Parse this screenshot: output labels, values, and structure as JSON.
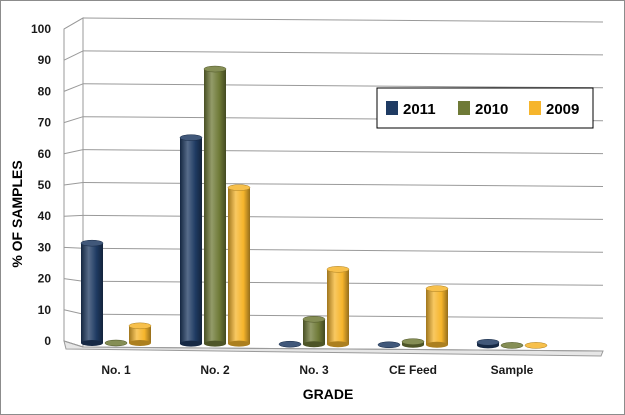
{
  "chart_data": {
    "type": "bar",
    "categories": [
      "No. 1",
      "No. 2",
      "No. 3",
      "CE Feed",
      "Sample"
    ],
    "series": [
      {
        "name": "2011",
        "color": "#1f3b63",
        "values": [
          32,
          66,
          0,
          0,
          1
        ]
      },
      {
        "name": "2010",
        "color": "#6f7a37",
        "values": [
          0,
          88,
          8,
          1,
          0
        ]
      },
      {
        "name": "2009",
        "color": "#f6b52c",
        "values": [
          5.5,
          50,
          24,
          18,
          0
        ]
      }
    ],
    "title": "",
    "xlabel": "GRADE",
    "ylabel": "% OF SAMPLES",
    "ylim": [
      0,
      100
    ],
    "yticks": [
      0,
      10,
      20,
      30,
      40,
      50,
      60,
      70,
      80,
      90,
      100
    ],
    "grid": true,
    "legend_position": "upper-right, inside plot",
    "style": "3d-cylinder"
  }
}
